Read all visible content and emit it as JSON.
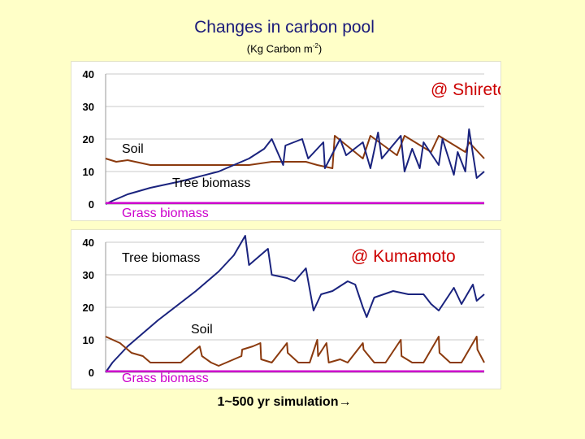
{
  "title": "Changes in carbon pool",
  "subtitle_prefix": "(Kg Carbon m",
  "subtitle_sup": "-2",
  "subtitle_suffix": ")",
  "caption": "1~500 yr simulation→",
  "colors": {
    "tree": "#1a237e",
    "soil": "#8b3a0e",
    "grass": "#cc00cc"
  },
  "chart_data": [
    {
      "type": "line",
      "annotation": "@ Shiretoko",
      "ylim": [
        0,
        40
      ],
      "yticks": [
        "0",
        "10",
        "20",
        "30",
        "40"
      ],
      "xlim": [
        1,
        500
      ],
      "grid": true,
      "series": [
        {
          "name": "Soil",
          "x": [
            1,
            15,
            30,
            60,
            95,
            130,
            150,
            190,
            220,
            265,
            280,
            300,
            303,
            340,
            350,
            385,
            395,
            430,
            440,
            475,
            480,
            500
          ],
          "values": [
            14,
            13,
            13.5,
            12,
            12,
            12,
            12,
            12,
            13,
            13,
            12,
            11,
            21,
            14,
            21,
            15,
            21,
            16,
            21,
            16,
            19,
            14
          ]
        },
        {
          "name": "Tree biomass",
          "x": [
            1,
            10,
            30,
            60,
            100,
            150,
            190,
            210,
            220,
            235,
            238,
            260,
            268,
            288,
            290,
            310,
            318,
            340,
            350,
            360,
            365,
            390,
            395,
            405,
            415,
            420,
            440,
            445,
            460,
            465,
            475,
            480,
            490,
            500
          ],
          "values": [
            0,
            1,
            3,
            5,
            7,
            10,
            14,
            17,
            20,
            12,
            18,
            20,
            14,
            19,
            11,
            20,
            15,
            19,
            11,
            22,
            14,
            21,
            10,
            17,
            11,
            19,
            12,
            20,
            9,
            16,
            10,
            23,
            8,
            10
          ]
        },
        {
          "name": "Grass biomass",
          "x": [
            1,
            500
          ],
          "values": [
            0.3,
            0.3
          ]
        }
      ]
    },
    {
      "type": "line",
      "annotation": "@ Kumamoto",
      "ylim": [
        0,
        40
      ],
      "yticks": [
        "0",
        "10",
        "20",
        "30",
        "40"
      ],
      "xlim": [
        1,
        500
      ],
      "grid": true,
      "series": [
        {
          "name": "Tree biomass",
          "x": [
            1,
            10,
            30,
            70,
            120,
            150,
            170,
            185,
            190,
            200,
            215,
            220,
            240,
            250,
            265,
            275,
            285,
            300,
            320,
            330,
            340,
            345,
            355,
            380,
            400,
            420,
            430,
            440,
            460,
            470,
            485,
            490,
            500
          ],
          "values": [
            0,
            3,
            8,
            16,
            25,
            31,
            36,
            42,
            33,
            35,
            38,
            30,
            29,
            28,
            32,
            19,
            24,
            25,
            28,
            27,
            20,
            17,
            23,
            25,
            24,
            24,
            21,
            19,
            26,
            21,
            27,
            22,
            24
          ]
        },
        {
          "name": "Soil",
          "x": [
            1,
            20,
            35,
            50,
            60,
            80,
            100,
            125,
            128,
            140,
            150,
            160,
            180,
            181,
            195,
            205,
            206,
            220,
            240,
            241,
            255,
            270,
            280,
            281,
            292,
            295,
            310,
            320,
            340,
            341,
            355,
            370,
            390,
            391,
            405,
            420,
            440,
            441,
            455,
            470,
            490,
            491,
            500
          ],
          "values": [
            11,
            9,
            6,
            5,
            3,
            3,
            3,
            8,
            5,
            3,
            2,
            3,
            5,
            7,
            8,
            9,
            4,
            3,
            9,
            6,
            3,
            3,
            10,
            5,
            9,
            3,
            4,
            3,
            9,
            7,
            3,
            3,
            10,
            5,
            3,
            3,
            11,
            6,
            3,
            3,
            11,
            7,
            3
          ]
        },
        {
          "name": "Grass biomass",
          "x": [
            1,
            500
          ],
          "values": [
            0.3,
            0.3
          ]
        }
      ]
    }
  ],
  "labels_top": {
    "soil": "Soil",
    "tree": "Tree biomass",
    "grass": "Grass biomass"
  },
  "labels_bot": {
    "tree": "Tree biomass",
    "soil": "Soil",
    "grass": "Grass biomass"
  }
}
